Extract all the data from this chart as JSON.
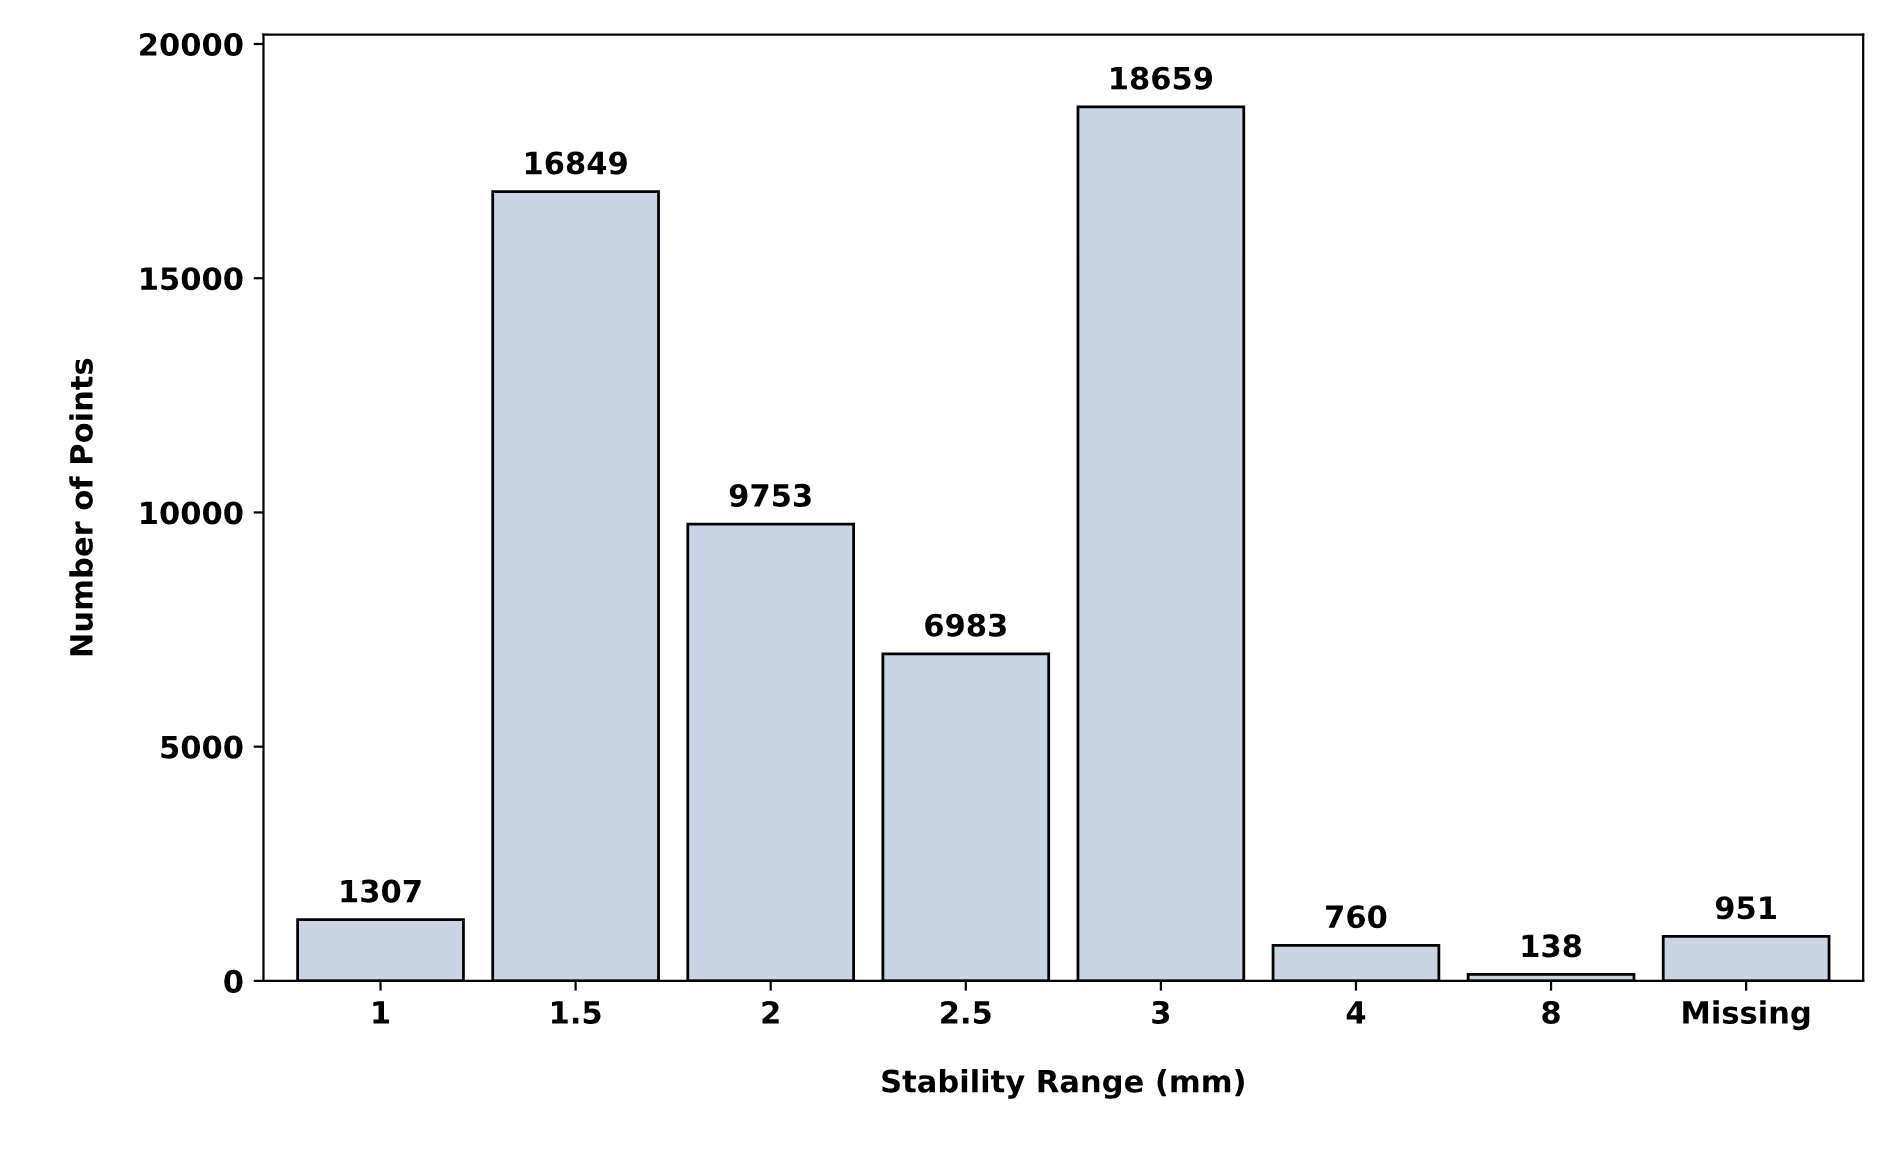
{
  "chart_data": {
    "type": "bar",
    "xlabel": "Stability Range (mm)",
    "ylabel": "Number of Points",
    "categories": [
      "1",
      "1.5",
      "2",
      "2.5",
      "3",
      "4",
      "8",
      "Missing"
    ],
    "values": [
      1307,
      16849,
      9753,
      6983,
      18659,
      760,
      138,
      951
    ],
    "color": "#c9d5e5",
    "ylim": [
      0,
      20200
    ],
    "yticks": [
      0,
      5000,
      10000,
      15000,
      20000
    ],
    "grid": false,
    "data_labels": true
  }
}
